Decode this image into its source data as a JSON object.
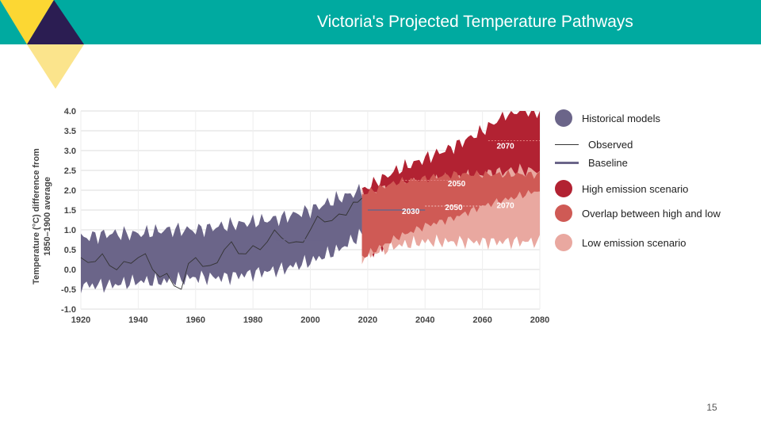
{
  "header": {
    "title": "Victoria's Projected Temperature Pathways",
    "bar_color": "#00aaa0"
  },
  "decor": {
    "colors": {
      "yellow": "#fcd733",
      "navy": "#2b1d52",
      "light_yellow": "#fbe48c"
    }
  },
  "legend": {
    "items": [
      {
        "label": "Historical models",
        "kind": "circle",
        "color": "#6b6589"
      },
      {
        "label": "Observed",
        "kind": "line",
        "color": "#333333"
      },
      {
        "label": "Baseline",
        "kind": "thick-line",
        "color": "#6b6589"
      },
      {
        "label": "High emission scenario",
        "kind": "circle",
        "color": "#b22232"
      },
      {
        "label": "Overlap between high and low",
        "kind": "circle",
        "color": "#cf5a55"
      },
      {
        "label": "Low emission scenario",
        "kind": "circle",
        "color": "#e9a8a0"
      }
    ]
  },
  "page_number": "15",
  "chart_data": {
    "type": "area",
    "title": "",
    "ylabel_lines": [
      "Temperature (°C) difference from",
      "1850–1900 average"
    ],
    "xlabel": "",
    "x_ticks": [
      "1920",
      "1940",
      "1960",
      "1980",
      "2000",
      "2020",
      "2040",
      "2060",
      "2080"
    ],
    "y_ticks": [
      "4.0",
      "3.5",
      "3.0",
      "2.5",
      "2.0",
      "1.5",
      "1.0",
      "0.5",
      "0.0",
      "-0.5",
      "-1.0"
    ],
    "xlim": [
      1920,
      2080
    ],
    "ylim": [
      -1.0,
      4.0
    ],
    "grid": true,
    "series": [
      {
        "name": "Historical models",
        "color": "#6b6589",
        "x": [
          1920,
          1930,
          1940,
          1950,
          1960,
          1970,
          1980,
          1990,
          2000,
          2010,
          2018
        ],
        "upper": [
          0.8,
          0.9,
          0.9,
          1.0,
          1.0,
          1.1,
          1.2,
          1.3,
          1.5,
          1.8,
          2.0
        ],
        "lower": [
          -0.4,
          -0.4,
          -0.3,
          -0.3,
          -0.2,
          -0.2,
          -0.1,
          0.0,
          0.2,
          0.5,
          0.9
        ]
      },
      {
        "name": "High emission scenario",
        "color": "#b22232",
        "x": [
          2018,
          2030,
          2040,
          2050,
          2060,
          2070,
          2080
        ],
        "upper": [
          2.0,
          2.5,
          2.8,
          3.1,
          3.5,
          4.0,
          4.0
        ],
        "lower": [
          0.3,
          0.8,
          1.1,
          1.3,
          1.7,
          2.0,
          2.2
        ]
      },
      {
        "name": "Overlap between high and low",
        "color": "#cf5a55",
        "x": [
          2018,
          2030,
          2040,
          2050,
          2060,
          2070,
          2080
        ],
        "upper": [
          1.9,
          2.2,
          2.3,
          2.4,
          2.4,
          2.4,
          2.4
        ],
        "lower": [
          0.3,
          0.8,
          1.1,
          1.3,
          1.6,
          1.8,
          2.0
        ]
      },
      {
        "name": "Low emission scenario",
        "color": "#e9a8a0",
        "x": [
          2018,
          2030,
          2040,
          2050,
          2060,
          2070,
          2080
        ],
        "upper": [
          1.9,
          2.1,
          2.2,
          2.3,
          2.4,
          2.5,
          2.5
        ],
        "lower": [
          0.3,
          0.6,
          0.7,
          0.7,
          0.7,
          0.7,
          0.7
        ]
      },
      {
        "name": "Observed",
        "color": "#333333",
        "x": [
          1920,
          1925,
          1930,
          1935,
          1940,
          1945,
          1950,
          1955,
          1960,
          1965,
          1970,
          1975,
          1980,
          1985,
          1990,
          1995,
          2000,
          2005,
          2010,
          2015,
          2018
        ],
        "y": [
          0.3,
          0.2,
          0.1,
          0.2,
          0.3,
          0.0,
          -0.1,
          -0.5,
          0.3,
          0.1,
          0.5,
          0.4,
          0.6,
          0.7,
          0.8,
          0.7,
          1.0,
          1.2,
          1.4,
          1.7,
          1.8
        ]
      }
    ],
    "baselines": [
      {
        "color": "#6b6589",
        "x": [
          1988,
          2005
        ],
        "y": 0.75
      },
      {
        "color": "#6b6589",
        "x": [
          2020,
          2040
        ],
        "y": 1.5
      }
    ],
    "reference_lines": [
      {
        "x": [
          2032,
          2052
        ],
        "y": 2.25,
        "color": "#e58080"
      },
      {
        "x": [
          2062,
          2080
        ],
        "y": 3.25,
        "color": "#e58080"
      },
      {
        "x": [
          2040,
          2060
        ],
        "y": 1.6,
        "color": "#f2c4c0"
      }
    ],
    "annotations": [
      {
        "text": "2030",
        "x": 2035,
        "y": 1.4
      },
      {
        "text": "2050",
        "x": 2051,
        "y": 2.1
      },
      {
        "text": "2050",
        "x": 2050,
        "y": 1.5
      },
      {
        "text": "2070",
        "x": 2068,
        "y": 3.05
      },
      {
        "text": "2070",
        "x": 2068,
        "y": 1.55
      }
    ]
  }
}
